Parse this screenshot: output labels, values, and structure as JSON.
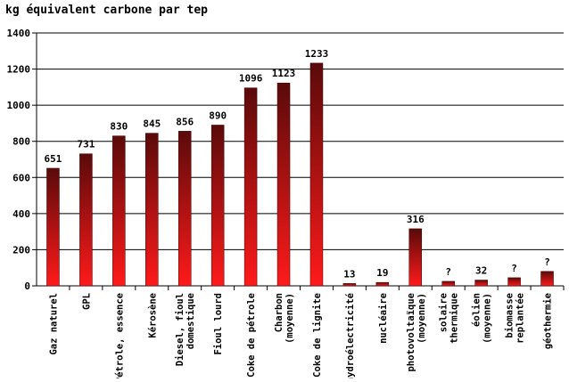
{
  "chart_data": {
    "type": "bar",
    "title": "kg équivalent carbone par tep",
    "xlabel": "",
    "ylabel": "",
    "ylim": [
      0,
      1400
    ],
    "yticks": [
      0,
      200,
      400,
      600,
      800,
      1000,
      1200,
      1400
    ],
    "grid": true,
    "legend": "none",
    "categories": [
      "Gaz naturel",
      "GPL",
      "Pétrole, essence",
      "Kérosène",
      "Diesel, fioul\ndomestique",
      "Fioul lourd",
      "Coke de pétrole",
      "Charbon\n(moyenne)",
      "Coke de lignite",
      "hydroélectricité",
      "nucléaire",
      "photovoltaïque\n(moyenne)",
      "solaire\nthermique",
      "éolien\n(moyenne)",
      "biomasse\nreplantée",
      "géothermie"
    ],
    "values": [
      651,
      731,
      830,
      845,
      856,
      890,
      1096,
      1123,
      1233,
      13,
      19,
      316,
      25,
      32,
      45,
      80
    ],
    "data_labels": [
      "651",
      "731",
      "830",
      "845",
      "856",
      "890",
      "1096",
      "1123",
      "1233",
      "13",
      "19",
      "316",
      "?",
      "32",
      "?",
      "?"
    ],
    "colors": {
      "bar_top": "#5a0a0a",
      "bar_bottom": "#ff1a1a",
      "grid": "#000000",
      "text": "#000000"
    }
  }
}
